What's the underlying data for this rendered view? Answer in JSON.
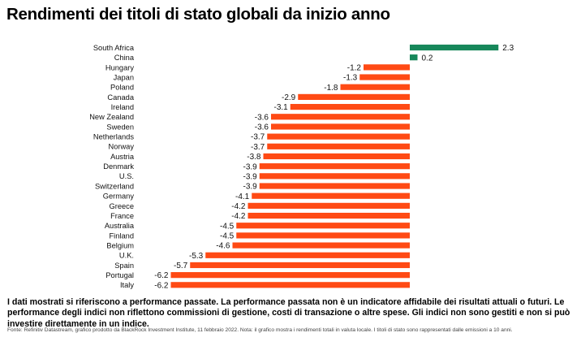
{
  "title": "Rendimenti dei titoli di stato globali da inizio anno",
  "note": "I dati mostrati si riferiscono a performance passate. La performance passata non è un indicatore affidabile dei risultati attuali o futuri. Le performance degli indici non riflettono commissioni di gestione, costi di transazione o altre spese. Gli indici non sono gestiti e non si può investire direttamente in un indice.",
  "source": "Fonte: Refinitiv Datastream, grafico prodotto da BlackRock Investment Institute, 11 febbraio 2022. Nota: il grafico mostra i rendimenti totali in valuta locale. I titoli di stato sono rappresentati dalle emissioni a 10 anni.",
  "colors": {
    "positive": "#16875a",
    "negative": "#ff4a14"
  },
  "chart_data": {
    "type": "bar",
    "orientation": "horizontal",
    "title": "Rendimenti dei titoli di stato globali da inizio anno",
    "categories": [
      "South Africa",
      "China",
      "Hungary",
      "Japan",
      "Poland",
      "Canada",
      "Ireland",
      "New Zealand",
      "Sweden",
      "Netherlands",
      "Norway",
      "Austria",
      "Denmark",
      "U.S.",
      "Switzerland",
      "Germany",
      "Greece",
      "France",
      "Australia",
      "Finland",
      "Belgium",
      "U.K.",
      "Spain",
      "Portugal",
      "Italy"
    ],
    "values": [
      2.3,
      0.2,
      -1.2,
      -1.3,
      -1.8,
      -2.9,
      -3.1,
      -3.6,
      -3.6,
      -3.7,
      -3.7,
      -3.8,
      -3.9,
      -3.9,
      -3.9,
      -4.1,
      -4.2,
      -4.2,
      -4.5,
      -4.5,
      -4.6,
      -5.3,
      -5.7,
      -6.2,
      -6.2
    ],
    "value_labels": [
      "2.3",
      "0.2",
      "-1.2",
      "-1.3",
      "-1.8",
      "-2.9",
      "-3.1",
      "-3.6",
      "-3.6",
      "-3.7",
      "-3.7",
      "-3.8",
      "-3.9",
      "-3.9",
      "-3.9",
      "-4.1",
      "-4.2",
      "-4.2",
      "-4.5",
      "-4.5",
      "-4.6",
      "-5.3",
      "-5.7",
      "-6.2",
      "-6.2"
    ],
    "xlabel": "",
    "ylabel": "",
    "grid": false,
    "legend": "none"
  }
}
